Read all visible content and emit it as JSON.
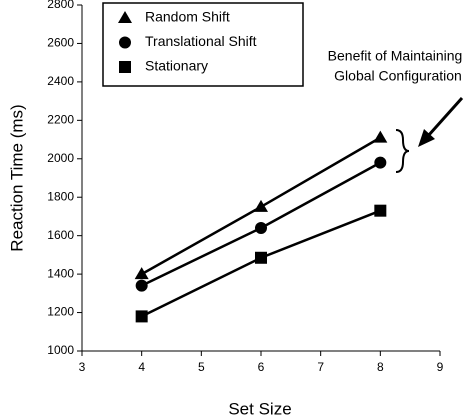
{
  "chart_data": {
    "type": "line",
    "x_label": "Set Size",
    "y_label": "Reaction Time (ms)",
    "annotation": [
      "Benefit of Maintaining",
      "Global Configuration"
    ],
    "x": [
      4,
      6,
      8
    ],
    "series": [
      {
        "name": "Random Shift",
        "color": "#000000",
        "marker": "triangle",
        "values": [
          1400,
          1750,
          2110
        ]
      },
      {
        "name": "Translational Shift",
        "color": "#000000",
        "marker": "circle",
        "values": [
          1340,
          1640,
          1980
        ]
      },
      {
        "name": "Stationary",
        "color": "#000000",
        "marker": "square",
        "values": [
          1180,
          1485,
          1730
        ]
      }
    ],
    "xlim": [
      3,
      9
    ],
    "xticks": [
      3,
      4,
      5,
      6,
      7,
      8,
      9
    ],
    "ylim": [
      1000,
      2800
    ],
    "yticks": [
      1000,
      1200,
      1400,
      1600,
      1800,
      2000,
      2200,
      2400,
      2600,
      2800
    ],
    "grid": false,
    "legend": "upper left"
  }
}
